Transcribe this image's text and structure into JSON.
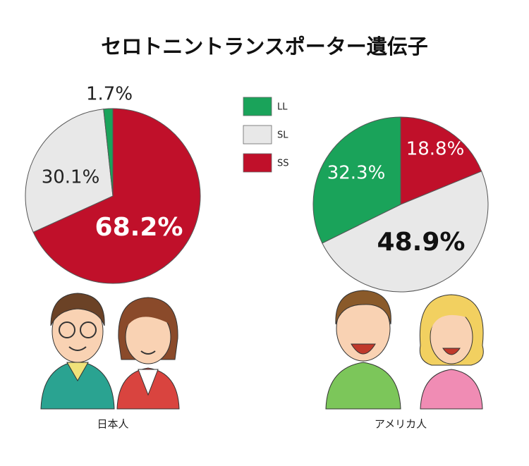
{
  "title": "セロトニントランスポーター遺伝子",
  "legend": {
    "categories": [
      "LL",
      "SL",
      "SS"
    ],
    "colors": [
      "#1aa35a",
      "#e8e8e8",
      "#c0102a"
    ]
  },
  "chart_data": [
    {
      "type": "pie",
      "title": "日本人",
      "values": [
        1.7,
        30.1,
        68.2
      ],
      "value_labels": [
        "1.7%",
        "30.1%",
        "68.2%"
      ]
    },
    {
      "type": "pie",
      "title": "アメリカ人",
      "values": [
        32.3,
        48.9,
        18.8
      ],
      "value_labels": [
        "32.3%",
        "48.9%",
        "18.8%"
      ]
    }
  ]
}
